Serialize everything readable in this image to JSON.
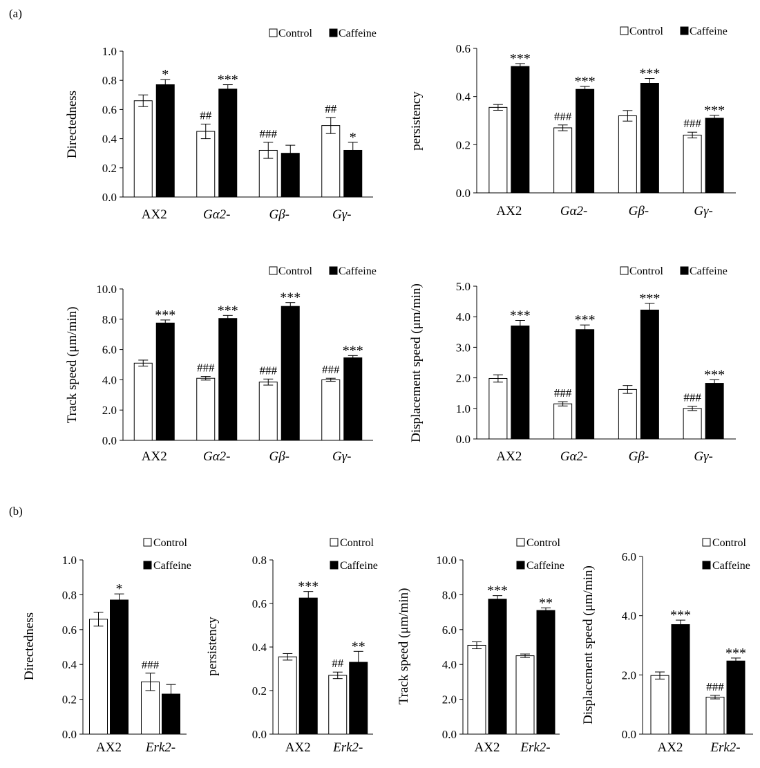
{
  "panels": {
    "a": "(a)",
    "b": "(b)"
  },
  "legend": {
    "control": "Control",
    "caffeine": "Caffeine"
  },
  "colors": {
    "control_fill": "#ffffff",
    "caffeine_fill": "#000000",
    "axis": "#000000"
  },
  "chart_data": [
    {
      "id": "a-directedness",
      "type": "bar",
      "ylabel": "Directedness",
      "ylim": [
        0,
        1.0
      ],
      "yticks": [
        "0.0",
        "0.2",
        "0.4",
        "0.6",
        "0.8",
        "1.0"
      ],
      "categories": [
        "AX2",
        "Gα2-",
        "Gβ-",
        "Gγ-"
      ],
      "category_italic": [
        false,
        true,
        true,
        true
      ],
      "series": [
        {
          "name": "Control",
          "values": [
            0.66,
            0.45,
            0.32,
            0.49
          ],
          "errors": [
            0.04,
            0.05,
            0.055,
            0.055
          ],
          "annotations": [
            "",
            "##",
            "###",
            "##"
          ]
        },
        {
          "name": "Caffeine",
          "values": [
            0.77,
            0.74,
            0.3,
            0.32
          ],
          "errors": [
            0.035,
            0.03,
            0.055,
            0.055
          ],
          "annotations": [
            "*",
            "***",
            "",
            "*"
          ]
        }
      ],
      "legend_position": "top-right"
    },
    {
      "id": "a-persistency",
      "type": "bar",
      "ylabel": "persistency",
      "ylim": [
        0,
        0.6
      ],
      "yticks": [
        "0.0",
        "0.2",
        "0.4",
        "0.6"
      ],
      "categories": [
        "AX2",
        "Gα2-",
        "Gβ-",
        "Gγ-"
      ],
      "category_italic": [
        false,
        true,
        true,
        true
      ],
      "series": [
        {
          "name": "Control",
          "values": [
            0.355,
            0.27,
            0.32,
            0.24
          ],
          "errors": [
            0.012,
            0.012,
            0.022,
            0.012
          ],
          "annotations": [
            "",
            "###",
            "",
            "###"
          ]
        },
        {
          "name": "Caffeine",
          "values": [
            0.525,
            0.43,
            0.455,
            0.31
          ],
          "errors": [
            0.012,
            0.012,
            0.02,
            0.012
          ],
          "annotations": [
            "***",
            "***",
            "***",
            "***"
          ]
        }
      ],
      "legend_position": "top-right"
    },
    {
      "id": "a-track-speed",
      "type": "bar",
      "ylabel": "Track speed (μm/min)",
      "ylim": [
        0,
        10.0
      ],
      "yticks": [
        "0.0",
        "2.0",
        "4.0",
        "6.0",
        "8.0",
        "10.0"
      ],
      "categories": [
        "AX2",
        "Gα2-",
        "Gβ-",
        "Gγ-"
      ],
      "category_italic": [
        false,
        true,
        true,
        true
      ],
      "series": [
        {
          "name": "Control",
          "values": [
            5.1,
            4.1,
            3.85,
            4.0
          ],
          "errors": [
            0.2,
            0.12,
            0.2,
            0.1
          ],
          "annotations": [
            "",
            "###",
            "###",
            "###"
          ]
        },
        {
          "name": "Caffeine",
          "values": [
            7.75,
            8.05,
            8.85,
            5.45
          ],
          "errors": [
            0.2,
            0.2,
            0.25,
            0.15
          ],
          "annotations": [
            "***",
            "***",
            "***",
            "***"
          ]
        }
      ],
      "legend_position": "top-right"
    },
    {
      "id": "a-displacement-speed",
      "type": "bar",
      "ylabel": "Displacement speed (μm/min)",
      "ylim": [
        0,
        5.0
      ],
      "yticks": [
        "0.0",
        "1.0",
        "2.0",
        "3.0",
        "4.0",
        "5.0"
      ],
      "categories": [
        "AX2",
        "Gα2-",
        "Gβ-",
        "Gγ-"
      ],
      "category_italic": [
        false,
        true,
        true,
        true
      ],
      "series": [
        {
          "name": "Control",
          "values": [
            1.98,
            1.15,
            1.62,
            1.0
          ],
          "errors": [
            0.12,
            0.07,
            0.13,
            0.07
          ],
          "annotations": [
            "",
            "###",
            "",
            "###"
          ]
        },
        {
          "name": "Caffeine",
          "values": [
            3.7,
            3.58,
            4.22,
            1.82
          ],
          "errors": [
            0.18,
            0.15,
            0.22,
            0.12
          ],
          "annotations": [
            "***",
            "***",
            "***",
            "***"
          ]
        }
      ],
      "legend_position": "top-right"
    },
    {
      "id": "b-directedness",
      "type": "bar",
      "ylabel": "Directedness",
      "ylim": [
        0,
        1.0
      ],
      "yticks": [
        "0.0",
        "0.2",
        "0.4",
        "0.6",
        "0.8",
        "1.0"
      ],
      "categories": [
        "AX2",
        "Erk2-"
      ],
      "category_italic": [
        false,
        true
      ],
      "series": [
        {
          "name": "Control",
          "values": [
            0.66,
            0.3
          ],
          "errors": [
            0.04,
            0.05
          ],
          "annotations": [
            "",
            "###"
          ]
        },
        {
          "name": "Caffeine",
          "values": [
            0.77,
            0.23
          ],
          "errors": [
            0.035,
            0.055
          ],
          "annotations": [
            "*",
            ""
          ]
        }
      ],
      "legend_position": "top-right"
    },
    {
      "id": "b-persistency",
      "type": "bar",
      "ylabel": "persistency",
      "ylim": [
        0,
        0.8
      ],
      "yticks": [
        "0.0",
        "0.2",
        "0.4",
        "0.6",
        "0.8"
      ],
      "categories": [
        "AX2",
        "Erk2-"
      ],
      "category_italic": [
        false,
        true
      ],
      "series": [
        {
          "name": "Control",
          "values": [
            0.355,
            0.27
          ],
          "errors": [
            0.015,
            0.015
          ],
          "annotations": [
            "",
            "##"
          ]
        },
        {
          "name": "Caffeine",
          "values": [
            0.625,
            0.33
          ],
          "errors": [
            0.03,
            0.05
          ],
          "annotations": [
            "***",
            "**"
          ]
        }
      ],
      "legend_position": "top-right"
    },
    {
      "id": "b-track-speed",
      "type": "bar",
      "ylabel": "Track speed (μm/min)",
      "ylim": [
        0,
        10.0
      ],
      "yticks": [
        "0.0",
        "2.0",
        "4.0",
        "6.0",
        "8.0",
        "10.0"
      ],
      "categories": [
        "AX2",
        "Erk2-"
      ],
      "category_italic": [
        false,
        true
      ],
      "series": [
        {
          "name": "Control",
          "values": [
            5.1,
            4.5
          ],
          "errors": [
            0.2,
            0.1
          ],
          "annotations": [
            "",
            ""
          ]
        },
        {
          "name": "Caffeine",
          "values": [
            7.75,
            7.1
          ],
          "errors": [
            0.2,
            0.15
          ],
          "annotations": [
            "***",
            "**"
          ]
        }
      ],
      "legend_position": "top-right"
    },
    {
      "id": "b-displacement-speed",
      "type": "bar",
      "ylabel": "Displacement speed (μm/min)",
      "ylim": [
        0,
        6.0
      ],
      "yticks": [
        "0.0",
        "2.0",
        "4.0",
        "6.0"
      ],
      "categories": [
        "AX2",
        "Erk2-"
      ],
      "category_italic": [
        false,
        true
      ],
      "series": [
        {
          "name": "Control",
          "values": [
            1.98,
            1.25
          ],
          "errors": [
            0.12,
            0.06
          ],
          "annotations": [
            "",
            "###"
          ]
        },
        {
          "name": "Caffeine",
          "values": [
            3.7,
            2.47
          ],
          "errors": [
            0.15,
            0.1
          ],
          "annotations": [
            "***",
            "***"
          ]
        }
      ],
      "legend_position": "top-right"
    }
  ]
}
